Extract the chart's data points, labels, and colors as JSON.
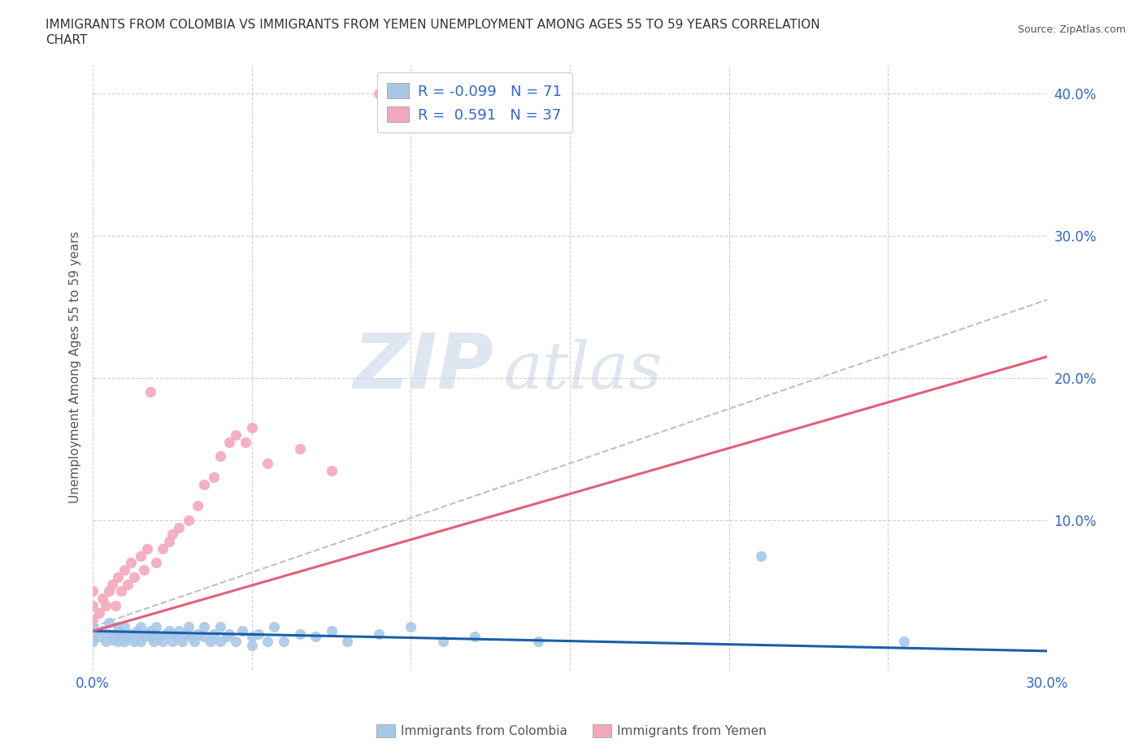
{
  "title_line1": "IMMIGRANTS FROM COLOMBIA VS IMMIGRANTS FROM YEMEN UNEMPLOYMENT AMONG AGES 55 TO 59 YEARS CORRELATION",
  "title_line2": "CHART",
  "source": "Source: ZipAtlas.com",
  "ylabel": "Unemployment Among Ages 55 to 59 years",
  "xlim": [
    0.0,
    0.3
  ],
  "ylim": [
    -0.005,
    0.42
  ],
  "xticks": [
    0.0,
    0.05,
    0.1,
    0.15,
    0.2,
    0.25,
    0.3
  ],
  "yticks": [
    0.1,
    0.2,
    0.3,
    0.4
  ],
  "xtick_labels": [
    "0.0%",
    "",
    "",
    "",
    "",
    "",
    "30.0%"
  ],
  "ytick_labels": [
    "10.0%",
    "20.0%",
    "30.0%",
    "40.0%"
  ],
  "colombia_color": "#a8c8e8",
  "yemen_color": "#f4a8bc",
  "colombia_line_color": "#1a5fa8",
  "yemen_line_color": "#e0607a",
  "trend_line_dashed_color": "#c0c0c0",
  "legend_R_colombia": "-0.099",
  "legend_N_colombia": "71",
  "legend_R_yemen": "0.591",
  "legend_N_yemen": "37",
  "colombia_scatter_x": [
    0.0,
    0.0,
    0.0,
    0.002,
    0.003,
    0.004,
    0.005,
    0.005,
    0.006,
    0.007,
    0.008,
    0.008,
    0.009,
    0.01,
    0.01,
    0.01,
    0.011,
    0.012,
    0.013,
    0.014,
    0.015,
    0.015,
    0.015,
    0.016,
    0.017,
    0.018,
    0.018,
    0.019,
    0.02,
    0.02,
    0.021,
    0.022,
    0.023,
    0.024,
    0.025,
    0.025,
    0.026,
    0.027,
    0.028,
    0.029,
    0.03,
    0.031,
    0.032,
    0.033,
    0.035,
    0.035,
    0.037,
    0.038,
    0.04,
    0.04,
    0.042,
    0.043,
    0.045,
    0.047,
    0.05,
    0.05,
    0.052,
    0.055,
    0.057,
    0.06,
    0.065,
    0.07,
    0.075,
    0.08,
    0.09,
    0.1,
    0.11,
    0.12,
    0.14,
    0.21,
    0.255
  ],
  "colombia_scatter_y": [
    0.02,
    0.015,
    0.025,
    0.018,
    0.022,
    0.015,
    0.02,
    0.028,
    0.016,
    0.02,
    0.015,
    0.025,
    0.018,
    0.02,
    0.025,
    0.015,
    0.018,
    0.02,
    0.015,
    0.022,
    0.02,
    0.025,
    0.015,
    0.018,
    0.02,
    0.018,
    0.022,
    0.015,
    0.02,
    0.025,
    0.018,
    0.015,
    0.02,
    0.022,
    0.015,
    0.02,
    0.018,
    0.022,
    0.015,
    0.02,
    0.025,
    0.018,
    0.015,
    0.02,
    0.018,
    0.025,
    0.015,
    0.02,
    0.015,
    0.025,
    0.018,
    0.02,
    0.015,
    0.022,
    0.012,
    0.018,
    0.02,
    0.015,
    0.025,
    0.015,
    0.02,
    0.018,
    0.022,
    0.015,
    0.02,
    0.025,
    0.015,
    0.018,
    0.015,
    0.075,
    0.015
  ],
  "yemen_scatter_x": [
    0.0,
    0.0,
    0.0,
    0.002,
    0.003,
    0.004,
    0.005,
    0.006,
    0.007,
    0.008,
    0.009,
    0.01,
    0.011,
    0.012,
    0.013,
    0.015,
    0.016,
    0.017,
    0.018,
    0.02,
    0.022,
    0.024,
    0.025,
    0.027,
    0.03,
    0.033,
    0.035,
    0.038,
    0.04,
    0.043,
    0.045,
    0.048,
    0.05,
    0.055,
    0.065,
    0.075,
    0.09
  ],
  "yemen_scatter_y": [
    0.03,
    0.04,
    0.05,
    0.035,
    0.045,
    0.04,
    0.05,
    0.055,
    0.04,
    0.06,
    0.05,
    0.065,
    0.055,
    0.07,
    0.06,
    0.075,
    0.065,
    0.08,
    0.19,
    0.07,
    0.08,
    0.085,
    0.09,
    0.095,
    0.1,
    0.11,
    0.125,
    0.13,
    0.145,
    0.155,
    0.16,
    0.155,
    0.165,
    0.14,
    0.15,
    0.135,
    0.4
  ],
  "colombia_trend_x": [
    0.0,
    0.3
  ],
  "colombia_trend_y": [
    0.022,
    0.008
  ],
  "yemen_trend_x": [
    0.0,
    0.3
  ],
  "yemen_trend_y": [
    0.022,
    0.215
  ],
  "dashed_trend_x": [
    0.0,
    0.3
  ],
  "dashed_trend_y": [
    0.025,
    0.255
  ]
}
